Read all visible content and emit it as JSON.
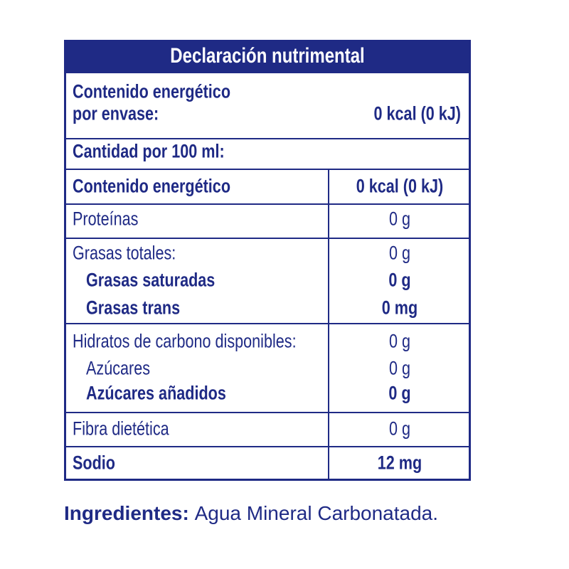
{
  "header": {
    "title": "Declaración nutrimental"
  },
  "energy_per_package": {
    "label_line1": "Contenido energético",
    "label_line2": "por envase:",
    "value": "0 kcal (0 kJ)"
  },
  "serving": {
    "label": "Cantidad por 100 ml:"
  },
  "rows": [
    {
      "label": "Contenido energético",
      "value": "0 kcal (0 kJ)"
    },
    {
      "label": "Proteínas",
      "value": "0 g"
    },
    {
      "label": "Grasas totales:",
      "value": "0 g"
    },
    {
      "label": "Grasas saturadas",
      "value": "0 g"
    },
    {
      "label": "Grasas trans",
      "value": "0 mg"
    },
    {
      "label": "Hidratos de carbono disponibles:",
      "value": "0 g"
    },
    {
      "label": "Azúcares",
      "value": "0 g"
    },
    {
      "label": "Azúcares añadidos",
      "value": "0 g"
    },
    {
      "label": "Fibra dietética",
      "value": "0 g"
    },
    {
      "label": "Sodio",
      "value": "12 mg"
    }
  ],
  "ingredients": {
    "label": "Ingredientes:",
    "text": "Agua Mineral Carbonatada."
  }
}
